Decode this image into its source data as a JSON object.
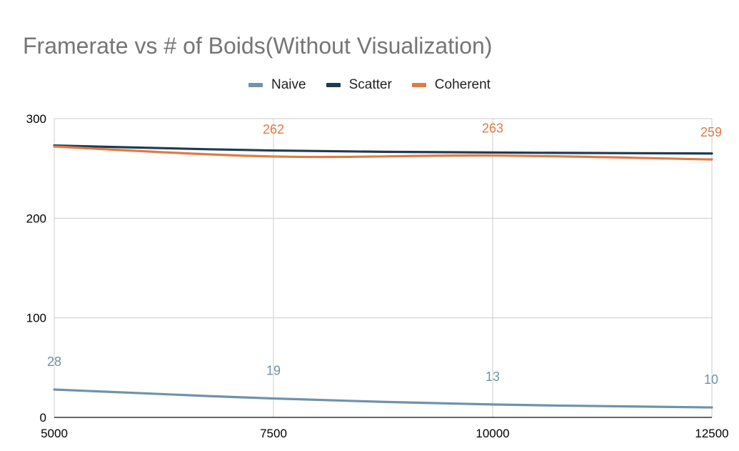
{
  "colors": {
    "Naive": "#6f93aa",
    "Scatter": "#1f3b52",
    "Coherent": "#e07a45",
    "grid": "#cccccc",
    "axis": "#333333",
    "title": "#757575"
  },
  "chart_data": {
    "type": "line",
    "title": "Framerate vs # of Boids(Without Visualization)",
    "xlabel": "",
    "ylabel": "",
    "x": [
      5000,
      7500,
      10000,
      12500
    ],
    "x_tick_labels": [
      "5000",
      "7500",
      "10000",
      "12500"
    ],
    "y_tick_labels": [
      "0",
      "100",
      "200",
      "300"
    ],
    "ylim": [
      0,
      300
    ],
    "xlim": [
      5000,
      12500
    ],
    "grid": true,
    "legend_position": "top",
    "series": [
      {
        "name": "Naive",
        "values": [
          28,
          19,
          13,
          10
        ],
        "data_labels": [
          "28",
          "19",
          "13",
          "10"
        ],
        "color": "#6f93aa"
      },
      {
        "name": "Scatter",
        "values": [
          273,
          268,
          266,
          265
        ],
        "data_labels": [],
        "color": "#1f3b52"
      },
      {
        "name": "Coherent",
        "values": [
          272,
          262,
          263,
          259
        ],
        "data_labels": [
          "",
          "262",
          "263",
          "259"
        ],
        "color": "#e07a45"
      }
    ]
  }
}
